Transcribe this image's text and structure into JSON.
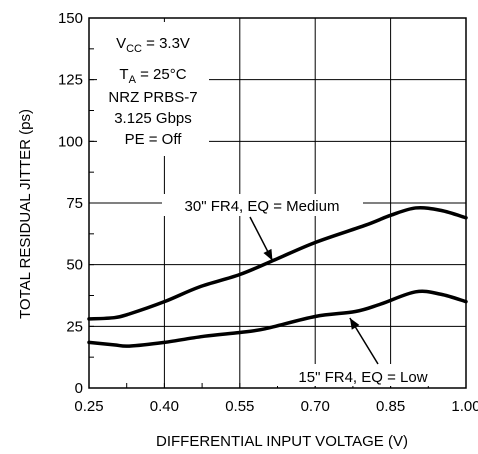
{
  "chart_data": {
    "type": "line",
    "xlabel": "DIFFERENTIAL INPUT VOLTAGE (V)",
    "ylabel": "TOTAL RESIDUAL JITTER (ps)",
    "xlim": [
      0.25,
      1.0
    ],
    "ylim": [
      0,
      150
    ],
    "x_ticks": [
      "0.25",
      "0.40",
      "0.55",
      "0.70",
      "0.85",
      "1.00"
    ],
    "x_tick_values": [
      0.25,
      0.4,
      0.55,
      0.7,
      0.85,
      1.0
    ],
    "y_ticks": [
      "0",
      "25",
      "50",
      "75",
      "100",
      "125",
      "150"
    ],
    "y_tick_values": [
      0,
      25,
      50,
      75,
      100,
      125,
      150
    ],
    "grid": true,
    "conditions": {
      "vcc_prefix": "V",
      "vcc_sub": "CC",
      "vcc_value": " = 3.3V",
      "ta_prefix": "T",
      "ta_sub": "A",
      "ta_value": " = 25°C",
      "pattern": "NRZ PRBS-7",
      "rate": "3.125 Gbps",
      "pe": "PE = Off"
    },
    "series": [
      {
        "name": "30\" FR4, EQ = Medium",
        "color": "#000000",
        "x": [
          0.25,
          0.3,
          0.33,
          0.4,
          0.47,
          0.55,
          0.62,
          0.7,
          0.8,
          0.85,
          0.9,
          0.95,
          1.0
        ],
        "y": [
          28,
          28.5,
          30,
          35,
          41,
          46,
          52,
          59,
          66,
          70,
          73,
          72,
          69
        ]
      },
      {
        "name": "15\" FR4, EQ = Low",
        "color": "#000000",
        "x": [
          0.25,
          0.3,
          0.33,
          0.4,
          0.48,
          0.55,
          0.6,
          0.7,
          0.78,
          0.83,
          0.9,
          0.95,
          1.0
        ],
        "y": [
          18.5,
          17.5,
          17,
          18.5,
          21,
          22.5,
          24,
          29,
          31,
          34,
          39,
          38,
          35
        ]
      }
    ],
    "annotations": [
      {
        "series": 0,
        "label": "30\" FR4, EQ = Medium",
        "arrow_x": 0.615,
        "arrow_y": 50
      },
      {
        "series": 1,
        "label": "15\" FR4, EQ = Low",
        "arrow_x": 0.765,
        "arrow_y": 30
      }
    ]
  }
}
